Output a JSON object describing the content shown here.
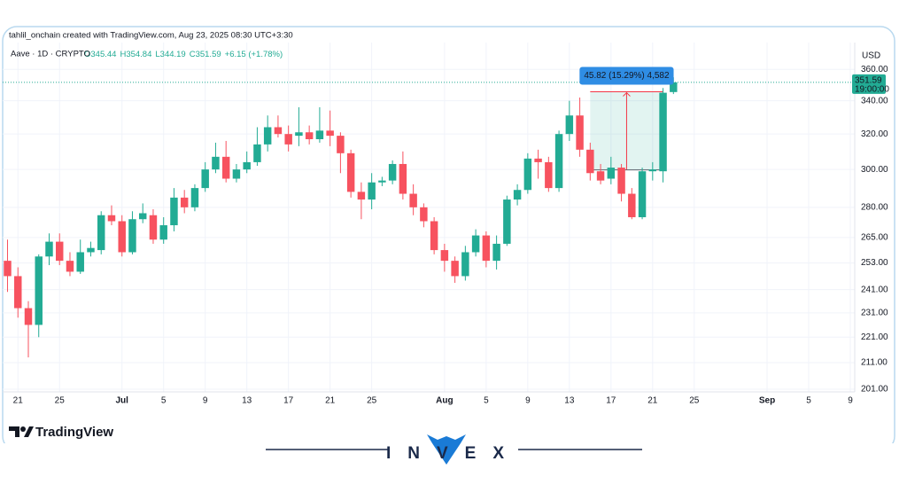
{
  "chart_data": {
    "type": "candlestick",
    "title": "tahlil_onchain created with TradingView.com, Aug 23, 2025 08:30 UTC+3:30",
    "legend_items": [
      "O345.44",
      "H354.84",
      "L344.19",
      "C351.59",
      "+6.15 (+1.78%)"
    ],
    "currency": "USD",
    "countdown": "19:00:00",
    "log_scale": true,
    "grid": true,
    "up_color": "#22ab94",
    "down_color": "#f7525f",
    "x": [
      "2025-06-20",
      "2025-06-21",
      "2025-06-22",
      "2025-06-23",
      "2025-06-24",
      "2025-06-25",
      "2025-06-26",
      "2025-06-27",
      "2025-06-28",
      "2025-06-29",
      "2025-06-30",
      "2025-07-01",
      "2025-07-02",
      "2025-07-03",
      "2025-07-04",
      "2025-07-05",
      "2025-07-06",
      "2025-07-07",
      "2025-07-08",
      "2025-07-09",
      "2025-07-10",
      "2025-07-11",
      "2025-07-12",
      "2025-07-13",
      "2025-07-14",
      "2025-07-15",
      "2025-07-16",
      "2025-07-17",
      "2025-07-18",
      "2025-07-19",
      "2025-07-20",
      "2025-07-21",
      "2025-07-22",
      "2025-07-23",
      "2025-07-24",
      "2025-07-25",
      "2025-07-26",
      "2025-07-27",
      "2025-07-28",
      "2025-07-29",
      "2025-07-30",
      "2025-07-31",
      "2025-08-01",
      "2025-08-02",
      "2025-08-03",
      "2025-08-04",
      "2025-08-05",
      "2025-08-06",
      "2025-08-07",
      "2025-08-08",
      "2025-08-09",
      "2025-08-10",
      "2025-08-11",
      "2025-08-12",
      "2025-08-13",
      "2025-08-14",
      "2025-08-15",
      "2025-08-16",
      "2025-08-17",
      "2025-08-18",
      "2025-08-19",
      "2025-08-20",
      "2025-08-21",
      "2025-08-22",
      "2025-08-23"
    ],
    "series": [
      {
        "name": "Aave · 1D · CRYPTO",
        "open": [
          254,
          247,
          233,
          226,
          256,
          263,
          254,
          249,
          258,
          259,
          276,
          273,
          258,
          274,
          276,
          264,
          271,
          285,
          280,
          290,
          300,
          307,
          295,
          300,
          304,
          314,
          324,
          320,
          319,
          321,
          317,
          322,
          319,
          309,
          288,
          284,
          293,
          294,
          303,
          287,
          280,
          273,
          259,
          254,
          247,
          258,
          266,
          254,
          262,
          284,
          289,
          306,
          304,
          290,
          320,
          331,
          311,
          299,
          295,
          301,
          287,
          275,
          299,
          299,
          345.44
        ],
        "high": [
          264,
          251,
          236,
          257,
          267,
          267,
          258,
          264,
          263,
          278,
          281,
          276,
          278,
          282,
          279,
          275,
          290,
          289,
          292,
          304,
          315,
          316,
          303,
          310,
          324,
          331,
          331,
          325,
          336,
          325,
          336,
          334,
          321,
          311,
          293,
          298,
          296,
          305,
          310,
          292,
          282,
          275,
          262,
          256,
          261,
          269,
          268,
          266,
          286,
          292,
          309,
          311,
          307,
          322,
          340,
          342,
          315,
          303,
          307,
          303,
          290,
          301,
          304,
          348,
          354.84
        ],
        "low": [
          240,
          229,
          213,
          221,
          252,
          252,
          247,
          248,
          256,
          257,
          271,
          256,
          257,
          272,
          262,
          262,
          268,
          277,
          278,
          288,
          298,
          293,
          293,
          298,
          302,
          310,
          318,
          310,
          313,
          314,
          315,
          313,
          298,
          285,
          274,
          279,
          291,
          292,
          284,
          276,
          270,
          257,
          249,
          244,
          245,
          256,
          251,
          250,
          261,
          281,
          287,
          295,
          288,
          288,
          316,
          307,
          294,
          292,
          292,
          283,
          274,
          274,
          294,
          293,
          344.19
        ],
        "close": [
          247,
          233,
          226,
          256,
          263,
          254,
          249,
          258,
          260,
          276,
          273,
          258,
          274,
          277,
          264,
          271,
          285,
          280,
          290,
          300,
          307,
          295,
          300,
          304,
          314,
          324,
          320,
          314,
          321,
          317,
          322,
          319,
          309,
          288,
          284,
          293,
          294,
          303,
          287,
          280,
          273,
          259,
          254,
          247,
          258,
          266,
          254,
          262,
          284,
          289,
          306,
          304,
          290,
          320,
          331,
          311,
          298,
          294,
          301,
          287,
          275,
          299,
          300,
          345,
          351.59
        ]
      }
    ],
    "measure": {
      "label": "45.82 (15.29%) 4,582",
      "from": "2025-08-15",
      "to": "2025-08-22",
      "low": 299.77,
      "high": 345.59
    },
    "xlim": [
      "2025-06-20",
      "2025-09-09"
    ],
    "xticks": [
      {
        "value": "2025-06-21",
        "label": "21"
      },
      {
        "value": "2025-06-25",
        "label": "25"
      },
      {
        "value": "2025-07-01",
        "label": "Jul"
      },
      {
        "value": "2025-07-05",
        "label": "5"
      },
      {
        "value": "2025-07-09",
        "label": "9"
      },
      {
        "value": "2025-07-13",
        "label": "13"
      },
      {
        "value": "2025-07-17",
        "label": "17"
      },
      {
        "value": "2025-07-21",
        "label": "21"
      },
      {
        "value": "2025-07-25",
        "label": "25"
      },
      {
        "value": "2025-08-01",
        "label": "Aug"
      },
      {
        "value": "2025-08-05",
        "label": "5"
      },
      {
        "value": "2025-08-09",
        "label": "9"
      },
      {
        "value": "2025-08-13",
        "label": "13"
      },
      {
        "value": "2025-08-17",
        "label": "17"
      },
      {
        "value": "2025-08-21",
        "label": "21"
      },
      {
        "value": "2025-08-25",
        "label": "25"
      },
      {
        "value": "2025-09-01",
        "label": "Sep"
      },
      {
        "value": "2025-09-05",
        "label": "5"
      },
      {
        "value": "2025-09-09",
        "label": "9"
      }
    ],
    "ylim": [
      201,
      375
    ],
    "yticks": [
      {
        "value": 360,
        "label": "360.00"
      },
      {
        "value": 340,
        "label": "340.00"
      },
      {
        "value": 320,
        "label": "320.00"
      },
      {
        "value": 300,
        "label": "300.00"
      },
      {
        "value": 280,
        "label": "280.00"
      },
      {
        "value": 265,
        "label": "265.00"
      },
      {
        "value": 253,
        "label": "253.00"
      },
      {
        "value": 241,
        "label": "241.00"
      },
      {
        "value": 231,
        "label": "231.00"
      },
      {
        "value": 221,
        "label": "221.00"
      },
      {
        "value": 211,
        "label": "211.00"
      },
      {
        "value": 201,
        "label": "201.00"
      }
    ]
  },
  "watermark": "TradingView",
  "brand": "INVEX"
}
